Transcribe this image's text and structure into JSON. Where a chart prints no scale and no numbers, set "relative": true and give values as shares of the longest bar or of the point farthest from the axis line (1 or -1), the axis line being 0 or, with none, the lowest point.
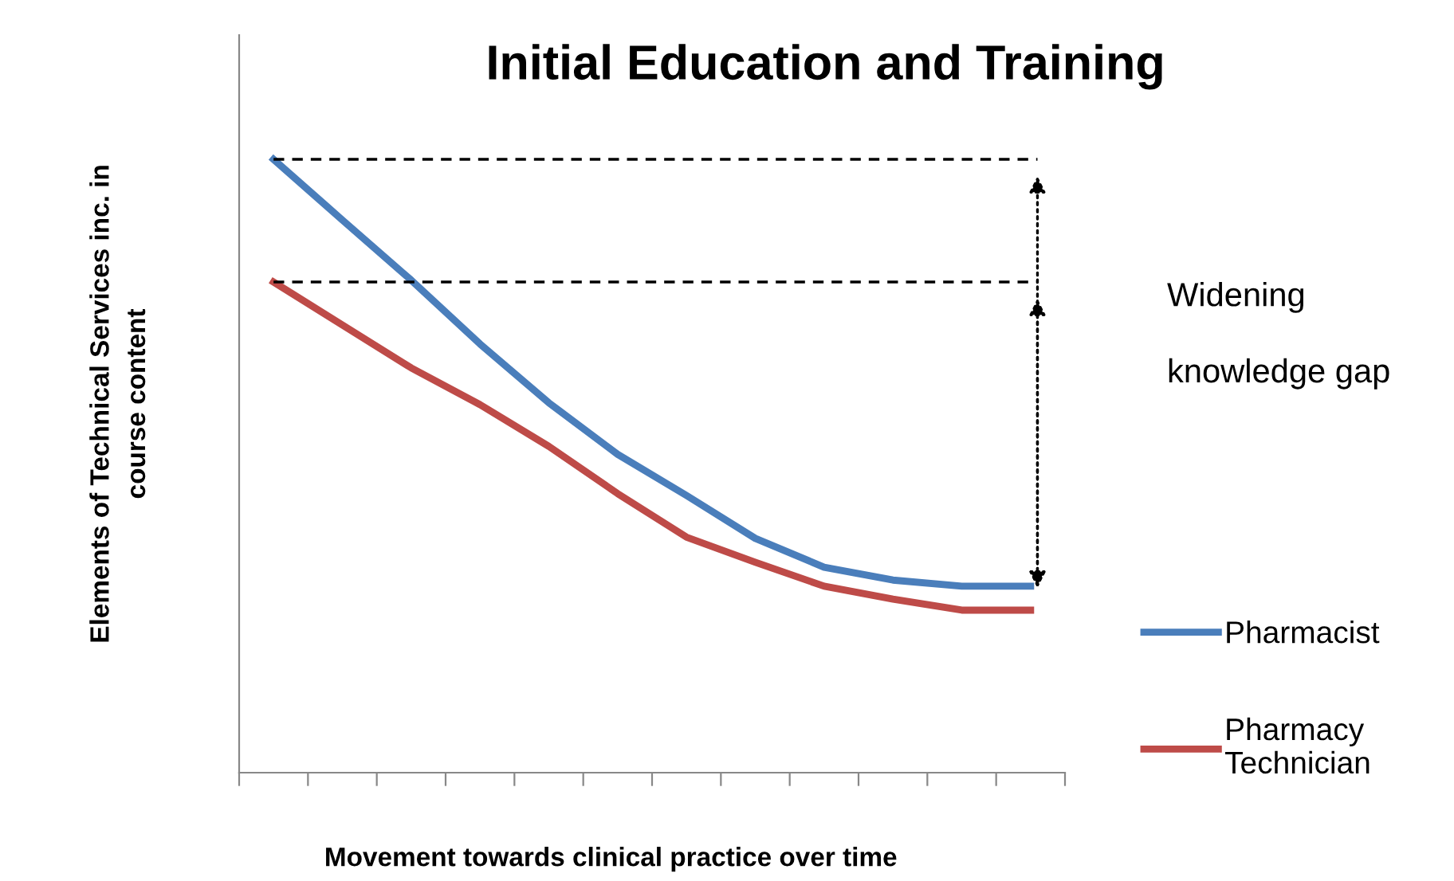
{
  "chart_data": {
    "type": "line",
    "title": "Initial Education and Training",
    "xlabel": "Movement towards clinical practice over time",
    "ylabel": "Elements of Technical Services inc. in\ncourse content",
    "categories": [
      null,
      null,
      null,
      null,
      null,
      null,
      null,
      null,
      null,
      null,
      null,
      null
    ],
    "relative": true,
    "series": [
      {
        "name": "Pharmacist",
        "color": "#4a7ebb",
        "values": [
          1,
          0.901,
          0.803,
          0.699,
          0.603,
          0.519,
          0.452,
          0.382,
          0.335,
          0.314,
          0.304,
          0.304
        ]
      },
      {
        "name": "Pharmacy\nTechnician",
        "color": "#be4b48",
        "values": [
          0.8,
          0.73,
          0.66,
          0.6,
          0.532,
          0.455,
          0.384,
          0.343,
          0.304,
          0.283,
          0.265,
          0.265
        ]
      }
    ],
    "ref_lines": [
      {
        "axis": "y",
        "value": 1,
        "label": null,
        "color": "#000000",
        "line_style": "dashed"
      },
      {
        "axis": "y",
        "value": 0.8,
        "label": null,
        "color": "#000000",
        "line_style": "dashed"
      }
    ],
    "annotations": [
      "Widening\n\nknowledge gap"
    ],
    "legend": "right",
    "grid": false,
    "marker": "none",
    "line_style": "solid"
  }
}
